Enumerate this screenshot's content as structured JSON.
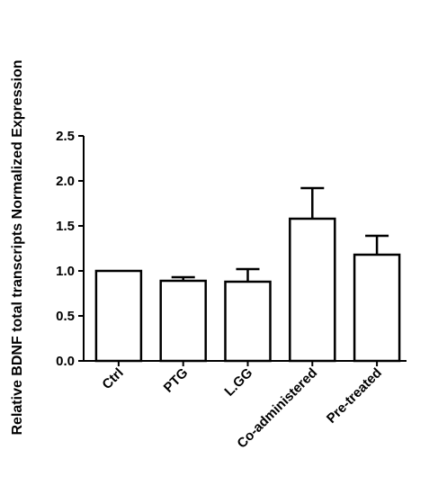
{
  "chart_data": {
    "type": "bar",
    "title": "",
    "xlabel": "",
    "ylabel": "Relative BDNF total transcripts Normalized Expression",
    "categories": [
      "Ctrl",
      "PTG",
      "L.GG",
      "Co-administered",
      "Pre-treated"
    ],
    "values": [
      1.0,
      0.89,
      0.88,
      1.58,
      1.18
    ],
    "errors": [
      0.0,
      0.04,
      0.14,
      0.34,
      0.21
    ],
    "ylim": [
      0,
      2.5
    ],
    "yticks": [
      "0.0",
      "0.5",
      "1.0",
      "1.5",
      "2.0",
      "2.5"
    ],
    "grid": false,
    "bar_fill": "#ffffff",
    "bar_stroke": "#000000"
  }
}
